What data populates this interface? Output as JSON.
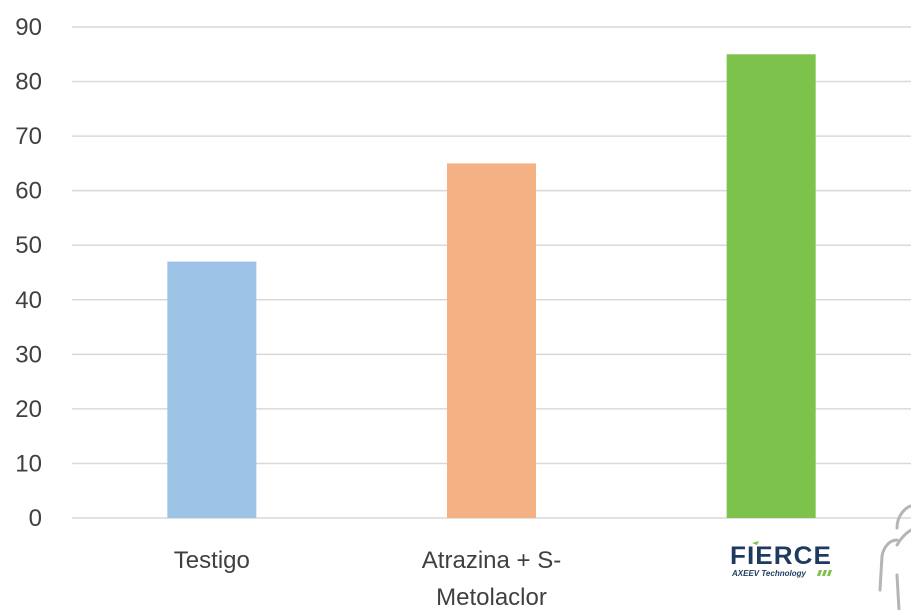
{
  "chart_data": {
    "type": "bar",
    "categories": [
      "Testigo",
      "Atrazina + S-Metolaclor",
      "FIERCE"
    ],
    "category_label_lines": [
      [
        "Testigo"
      ],
      [
        "Atrazina + S-",
        "Metolaclor"
      ],
      []
    ],
    "values": [
      47,
      65,
      85
    ],
    "bar_colors": [
      "#9dc3e6",
      "#f4b183",
      "#7dc24b"
    ],
    "ylim": [
      0,
      90
    ],
    "yticks": [
      0,
      10,
      20,
      30,
      40,
      50,
      60,
      70,
      80,
      90
    ],
    "grid": true,
    "title": "",
    "xlabel": "",
    "ylabel": ""
  },
  "logo": {
    "main_text": "FIERCE",
    "sub_text": "AXEEV Technology",
    "color": "#1f3a5f",
    "accent_color": "#7dc24b"
  },
  "decoration": {
    "icon": "person-outline-icon"
  }
}
